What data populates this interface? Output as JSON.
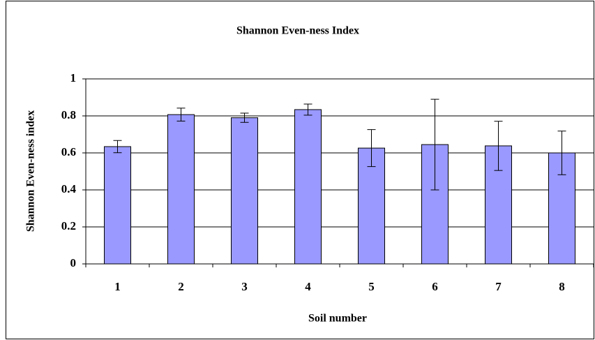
{
  "chart_data": {
    "type": "bar",
    "title": "Shannon Even-ness Index",
    "x_label": "Soil number",
    "y_label": "Shannon Even-ness index",
    "categories": [
      "1",
      "2",
      "3",
      "4",
      "5",
      "6",
      "7",
      "8"
    ],
    "values": [
      0.634,
      0.807,
      0.79,
      0.834,
      0.626,
      0.645,
      0.638,
      0.6
    ],
    "errors": [
      0.033,
      0.035,
      0.025,
      0.03,
      0.1,
      0.245,
      0.133,
      0.118
    ],
    "color": "#9999ff",
    "ylim": [
      0,
      1
    ],
    "yticks": [
      0,
      0.2,
      0.4,
      0.6,
      0.8,
      1
    ],
    "grid": true
  }
}
